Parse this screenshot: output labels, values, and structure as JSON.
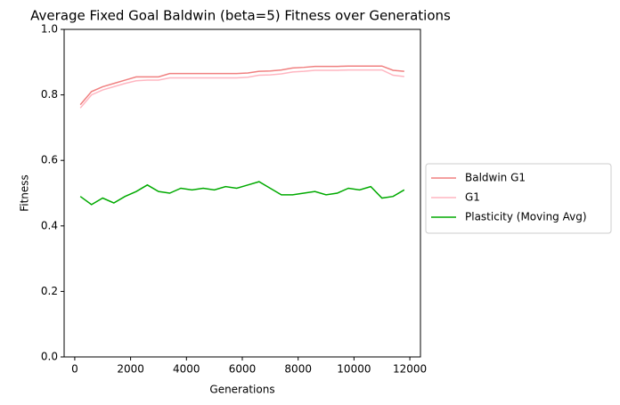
{
  "chart_data": {
    "type": "line",
    "title": "Average Fixed Goal Baldwin (beta=5) Fitness over Generations",
    "xlabel": "Generations",
    "ylabel": "Fitness",
    "x": [
      200,
      600,
      1000,
      1400,
      1800,
      2200,
      2600,
      3000,
      3400,
      3800,
      4200,
      4600,
      5000,
      5400,
      5800,
      6200,
      6600,
      7000,
      7400,
      7800,
      8200,
      8600,
      9000,
      9400,
      9800,
      10200,
      10600,
      11000,
      11400,
      11800
    ],
    "series": [
      {
        "name": "Baldwin G1",
        "color": "#f08080",
        "values": [
          0.77,
          0.81,
          0.825,
          0.835,
          0.845,
          0.855,
          0.855,
          0.855,
          0.865,
          0.865,
          0.865,
          0.865,
          0.865,
          0.865,
          0.865,
          0.867,
          0.872,
          0.873,
          0.876,
          0.882,
          0.884,
          0.887,
          0.887,
          0.887,
          0.888,
          0.888,
          0.888,
          0.888,
          0.875,
          0.872
        ]
      },
      {
        "name": "G1",
        "color": "#ffb6c1",
        "values": [
          0.76,
          0.8,
          0.815,
          0.825,
          0.835,
          0.843,
          0.845,
          0.845,
          0.852,
          0.852,
          0.852,
          0.852,
          0.852,
          0.852,
          0.852,
          0.854,
          0.86,
          0.861,
          0.864,
          0.87,
          0.872,
          0.875,
          0.875,
          0.875,
          0.876,
          0.876,
          0.876,
          0.876,
          0.86,
          0.856
        ]
      },
      {
        "name": "Plasticity (Moving Avg)",
        "color": "#00aa00",
        "values": [
          0.49,
          0.465,
          0.485,
          0.47,
          0.49,
          0.505,
          0.525,
          0.505,
          0.5,
          0.515,
          0.51,
          0.515,
          0.51,
          0.52,
          0.515,
          0.525,
          0.535,
          0.515,
          0.495,
          0.495,
          0.5,
          0.505,
          0.495,
          0.5,
          0.515,
          0.51,
          0.52,
          0.485,
          0.49,
          0.51
        ]
      }
    ],
    "xlim": [
      -380,
      12380
    ],
    "xticks": [
      0,
      2000,
      4000,
      6000,
      8000,
      10000,
      12000
    ],
    "ylim": [
      0,
      1
    ],
    "yticks": [
      {
        "value": 0,
        "label": "0.0"
      },
      {
        "value": 0.2,
        "label": "0.2"
      },
      {
        "value": 0.4,
        "label": "0.4"
      },
      {
        "value": 0.6,
        "label": "0.6"
      },
      {
        "value": 0.8,
        "label": "0.8"
      },
      {
        "value": 1,
        "label": "1.0"
      }
    ],
    "legend": "outside-right"
  }
}
